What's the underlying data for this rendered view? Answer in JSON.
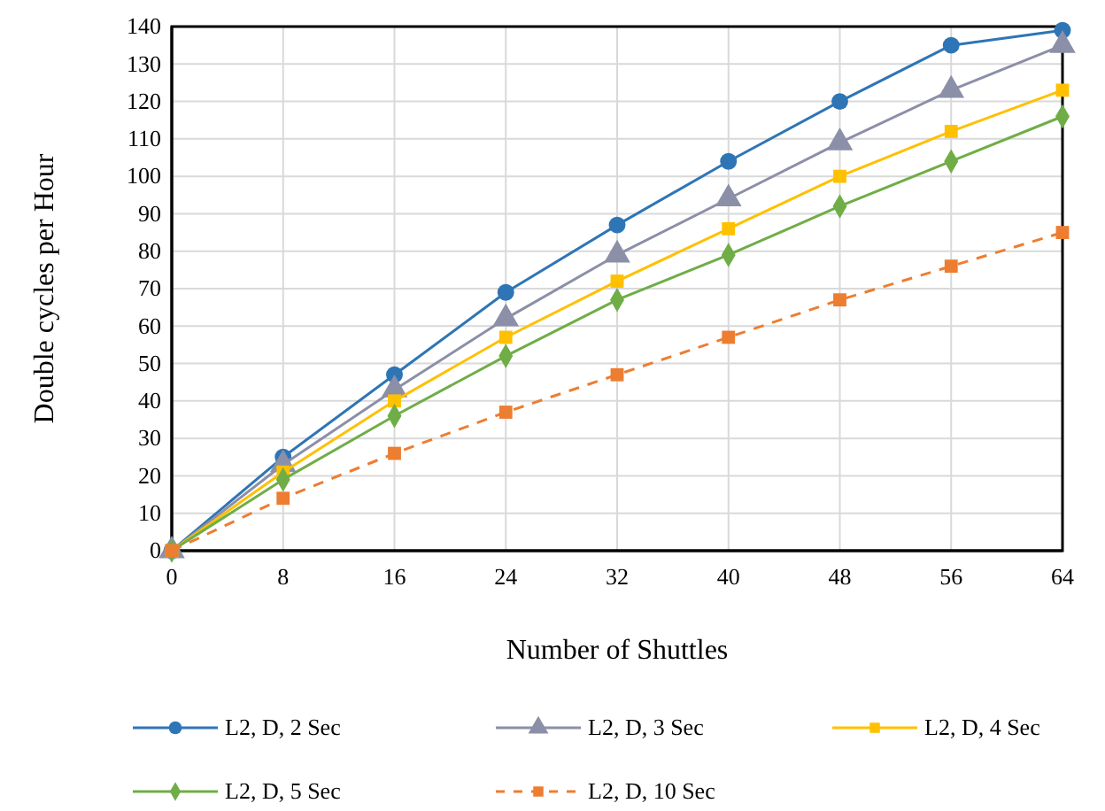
{
  "chart_data": {
    "type": "line",
    "xlabel": "Number of Shuttles",
    "ylabel": "Double cycles per Hour",
    "x": [
      0,
      8,
      16,
      24,
      32,
      40,
      48,
      56,
      64
    ],
    "xlim": [
      0,
      64
    ],
    "xticks": [
      0,
      8,
      16,
      24,
      32,
      40,
      48,
      56,
      64
    ],
    "ylim": [
      0,
      140
    ],
    "yticks": [
      0,
      10,
      20,
      30,
      40,
      50,
      60,
      70,
      80,
      90,
      100,
      110,
      120,
      130,
      140
    ],
    "grid": true,
    "legend": "bottom",
    "series": [
      {
        "name": "L2, D, 2 Sec",
        "color": "#2e75b6",
        "marker": "circle",
        "line_style": "solid",
        "values": [
          0,
          25,
          47,
          69,
          87,
          104,
          120,
          135,
          139
        ]
      },
      {
        "name": "L2, D, 3 Sec",
        "color": "#8c8fa8",
        "marker": "triangle",
        "line_style": "solid",
        "values": [
          0,
          23,
          43,
          62,
          79,
          94,
          109,
          123,
          135
        ]
      },
      {
        "name": "L2, D, 4 Sec",
        "color": "#ffc000",
        "marker": "square",
        "line_style": "solid",
        "values": [
          0,
          21,
          40,
          57,
          72,
          86,
          100,
          112,
          123
        ]
      },
      {
        "name": "L2, D, 5 Sec",
        "color": "#70ad47",
        "marker": "diamond",
        "line_style": "solid",
        "values": [
          0,
          19,
          36,
          52,
          67,
          79,
          92,
          104,
          116
        ]
      },
      {
        "name": "L2, D, 10 Sec",
        "color": "#ed7d31",
        "marker": "square",
        "line_style": "dashed",
        "values": [
          0,
          14,
          26,
          37,
          47,
          57,
          67,
          76,
          85
        ]
      }
    ]
  }
}
